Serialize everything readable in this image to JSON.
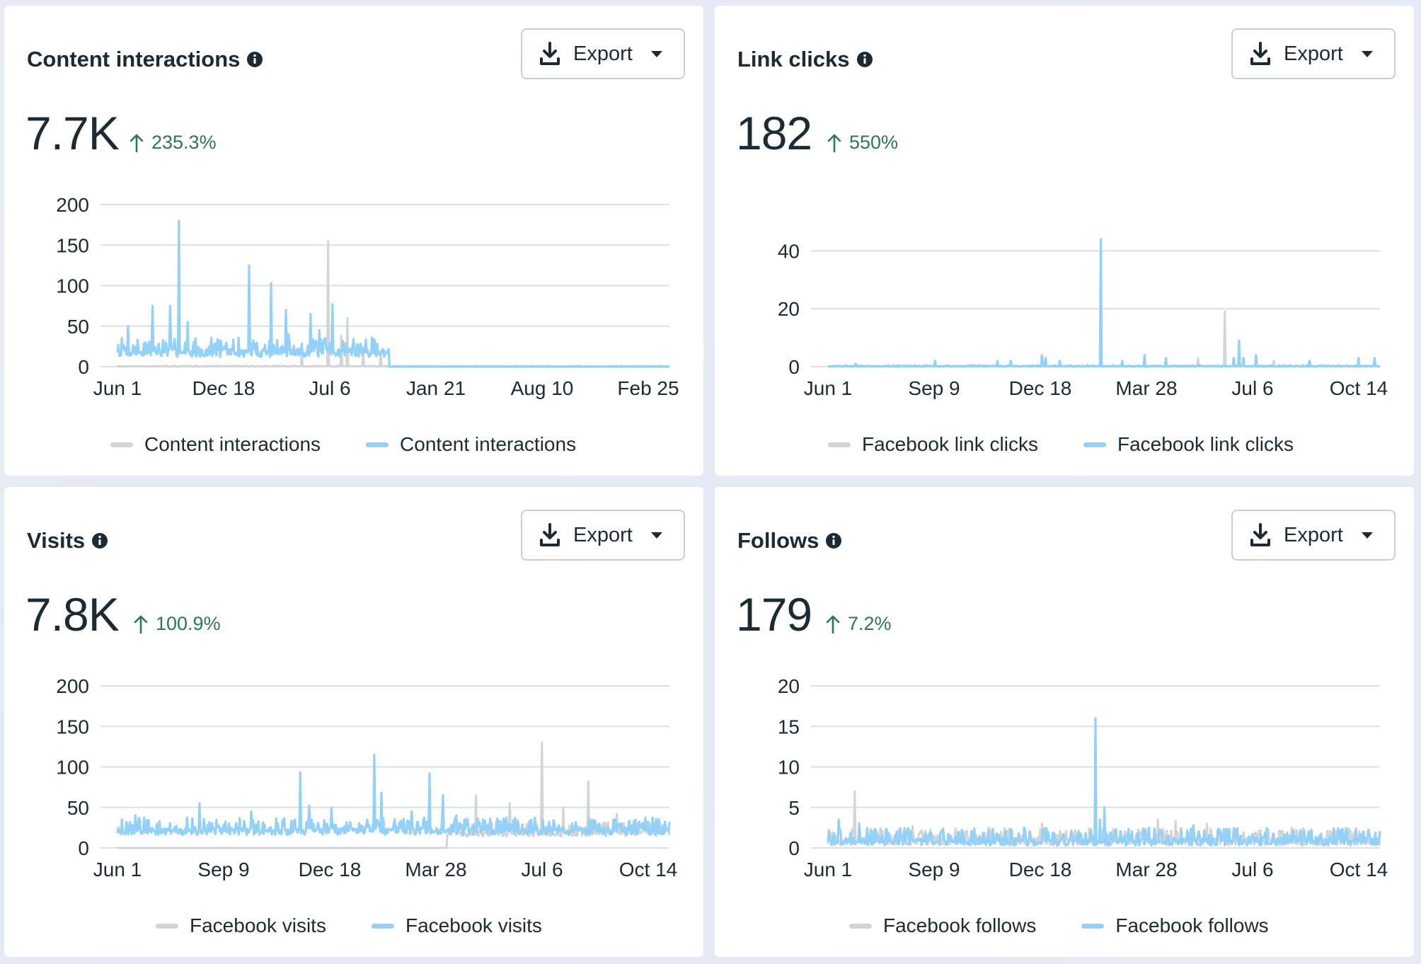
{
  "colors": {
    "previous": "#d2d4d8",
    "current": "#94d1f8",
    "positive": "#2b7a4b",
    "grid": "#dcdfe4"
  },
  "icons": {
    "info": "info-icon",
    "download": "download-icon",
    "caret": "caret-down-icon",
    "arrow": "arrow-up-icon"
  },
  "cards": [
    {
      "title": "Content interactions",
      "export_label": "Export",
      "value": "7.7K",
      "delta": "235.3%",
      "legend_previous": "Content interactions",
      "legend_current": "Content interactions"
    },
    {
      "title": "Link clicks",
      "export_label": "Export",
      "value": "182",
      "delta": "550%",
      "legend_previous": "Facebook link clicks",
      "legend_current": "Facebook link clicks"
    },
    {
      "title": "Visits",
      "export_label": "Export",
      "value": "7.8K",
      "delta": "100.9%",
      "legend_previous": "Facebook visits",
      "legend_current": "Facebook visits"
    },
    {
      "title": "Follows",
      "export_label": "Export",
      "value": "179",
      "delta": "7.2%",
      "legend_previous": "Facebook follows",
      "legend_current": "Facebook follows"
    }
  ],
  "chart_data": [
    {
      "type": "line",
      "title": "Content interactions",
      "xlabel": "",
      "ylabel": "",
      "x_ticks": [
        "Jun 1",
        "Dec 18",
        "Jul 6",
        "Jan 21",
        "Aug 10",
        "Feb 25"
      ],
      "y_ticks": [
        0,
        50,
        100,
        150,
        200
      ],
      "ylim": [
        0,
        200
      ],
      "grid": true,
      "legend": "bottom",
      "x_count": 630,
      "series": [
        {
          "name": "Content interactions",
          "role": "previous",
          "active_range": [
            0,
            630
          ],
          "base": 0,
          "noise": 1,
          "seed": 11,
          "spikes": [
            [
              240,
              155
            ],
            [
              262,
              60
            ],
            [
              255,
              38
            ],
            [
              210,
              18
            ],
            [
              280,
              24
            ],
            [
              300,
              18
            ]
          ]
        },
        {
          "name": "Content interactions",
          "role": "current",
          "active_range": [
            0,
            310
          ],
          "base": 12,
          "noise": 20,
          "seed": 7,
          "spikes": [
            [
              70,
              180
            ],
            [
              150,
              125
            ],
            [
              175,
              103
            ],
            [
              245,
              77
            ],
            [
              40,
              75
            ],
            [
              60,
              75
            ],
            [
              12,
              50
            ],
            [
              80,
              55
            ],
            [
              192,
              70
            ],
            [
              220,
              65
            ],
            [
              195,
              40
            ],
            [
              230,
              45
            ]
          ]
        }
      ]
    },
    {
      "type": "line",
      "title": "Link clicks",
      "xlabel": "",
      "ylabel": "",
      "x_ticks": [
        "Jun 1",
        "Sep 9",
        "Dec 18",
        "Mar 28",
        "Jul 6",
        "Oct 14"
      ],
      "y_ticks": [
        0,
        20,
        40
      ],
      "ylim": [
        0,
        45
      ],
      "grid": true,
      "legend": "bottom",
      "x_count": 620,
      "series": [
        {
          "name": "Facebook link clicks",
          "role": "previous",
          "active_range": [
            0,
            620
          ],
          "base": 0,
          "noise": 0.3,
          "seed": 21,
          "spikes": [
            [
              445,
              19
            ],
            [
              415,
              3
            ],
            [
              500,
              2
            ]
          ]
        },
        {
          "name": "Facebook link clicks",
          "role": "current",
          "active_range": [
            0,
            620
          ],
          "base": 0,
          "noise": 0.4,
          "seed": 5,
          "spikes": [
            [
              306,
              44
            ],
            [
              240,
              4
            ],
            [
              244,
              3
            ],
            [
              355,
              4
            ],
            [
              379,
              3
            ],
            [
              461,
              9
            ],
            [
              466,
              3
            ],
            [
              480,
              4
            ],
            [
              455,
              3
            ],
            [
              595,
              3
            ],
            [
              613,
              3
            ],
            [
              31,
              1
            ],
            [
              120,
              2
            ],
            [
              190,
              2
            ],
            [
              205,
              2
            ],
            [
              260,
              2
            ],
            [
              330,
              2
            ],
            [
              540,
              2
            ]
          ]
        }
      ]
    },
    {
      "type": "line",
      "title": "Visits",
      "xlabel": "",
      "ylabel": "",
      "x_ticks": [
        "Jun 1",
        "Sep 9",
        "Dec 18",
        "Mar 28",
        "Jul 6",
        "Oct 14"
      ],
      "y_ticks": [
        0,
        50,
        100,
        150,
        200
      ],
      "ylim": [
        0,
        200
      ],
      "grid": true,
      "legend": "bottom",
      "x_count": 620,
      "series": [
        {
          "name": "Facebook visits",
          "role": "previous",
          "active_range": [
            370,
            620
          ],
          "base": 14,
          "noise": 16,
          "seed": 33,
          "spikes": [
            [
              476,
              130
            ],
            [
              528,
              82
            ],
            [
              402,
              65
            ],
            [
              440,
              55
            ],
            [
              500,
              50
            ],
            [
              560,
              42
            ],
            [
              600,
              30
            ]
          ]
        },
        {
          "name": "Facebook visits",
          "role": "current",
          "active_range": [
            0,
            620
          ],
          "base": 16,
          "noise": 18,
          "seed": 9,
          "spikes": [
            [
              205,
              93
            ],
            [
              288,
              115
            ],
            [
              350,
              92
            ],
            [
              92,
              55
            ],
            [
              215,
              52
            ],
            [
              296,
              68
            ],
            [
              365,
              65
            ],
            [
              20,
              40
            ],
            [
              150,
              45
            ],
            [
              240,
              50
            ],
            [
              330,
              45
            ],
            [
              380,
              40
            ],
            [
              410,
              35
            ],
            [
              440,
              30
            ],
            [
              470,
              28
            ],
            [
              520,
              25
            ],
            [
              570,
              25
            ]
          ]
        }
      ]
    },
    {
      "type": "line",
      "title": "Follows",
      "xlabel": "",
      "ylabel": "",
      "x_ticks": [
        "Jun 1",
        "Sep 9",
        "Dec 18",
        "Mar 28",
        "Jul 6",
        "Oct 14"
      ],
      "y_ticks": [
        0,
        5,
        10,
        15,
        20
      ],
      "ylim": [
        0,
        20
      ],
      "grid": true,
      "legend": "bottom",
      "x_count": 620,
      "series": [
        {
          "name": "Facebook follows",
          "role": "previous",
          "active_range": [
            0,
            620
          ],
          "base": 0.3,
          "noise": 1.8,
          "seed": 44,
          "spikes": [
            [
              30,
              7
            ],
            [
              95,
              2.7
            ],
            [
              370,
              3.5
            ],
            [
              390,
              3.3
            ],
            [
              425,
              3
            ],
            [
              455,
              2.5
            ],
            [
              520,
              2.5
            ],
            [
              180,
              2.5
            ],
            [
              240,
              3
            ]
          ]
        },
        {
          "name": "Facebook follows",
          "role": "current",
          "active_range": [
            0,
            620
          ],
          "base": 0.3,
          "noise": 1.8,
          "seed": 3,
          "spikes": [
            [
              300,
              16
            ],
            [
              310,
              5
            ],
            [
              305,
              3.5
            ],
            [
              12,
              3.5
            ],
            [
              35,
              3
            ],
            [
              220,
              2.5
            ],
            [
              360,
              2.5
            ],
            [
              410,
              2.8
            ],
            [
              600,
              2
            ]
          ]
        }
      ]
    }
  ]
}
